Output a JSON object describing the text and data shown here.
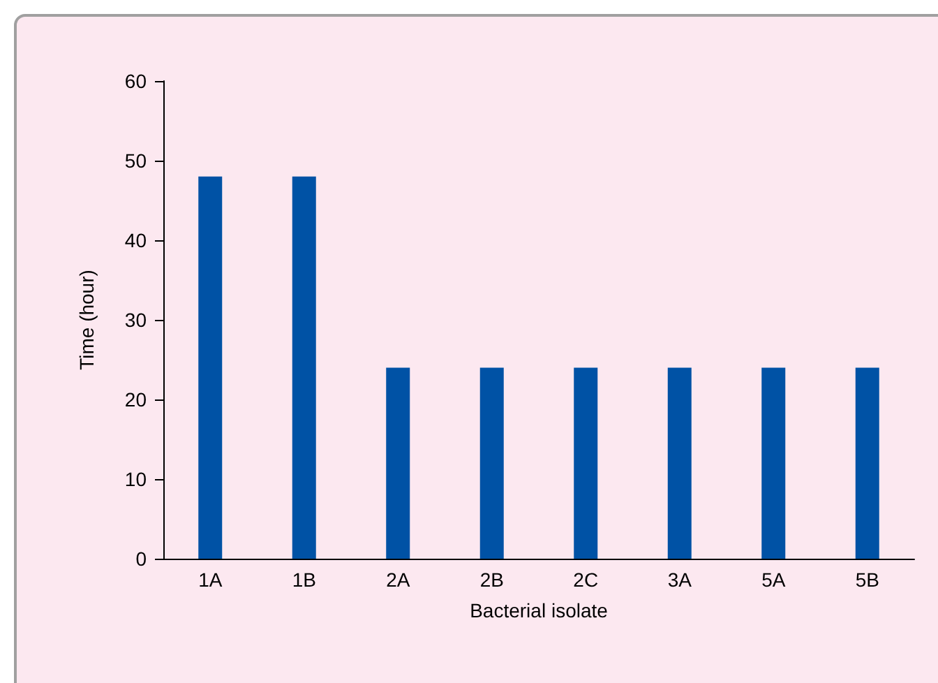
{
  "chart_data": {
    "type": "bar",
    "xlabel": "Bacterial isolate",
    "ylabel": "Time (hour)",
    "categories": [
      "1A",
      "1B",
      "2A",
      "2B",
      "2C",
      "3A",
      "5A",
      "5B"
    ],
    "values": [
      48,
      48,
      24,
      24,
      24,
      24,
      24,
      24
    ],
    "color": "#0052a5",
    "ylim": [
      0,
      60
    ],
    "yticks": [
      0,
      10,
      20,
      30,
      40,
      50,
      60
    ],
    "grid": false
  }
}
